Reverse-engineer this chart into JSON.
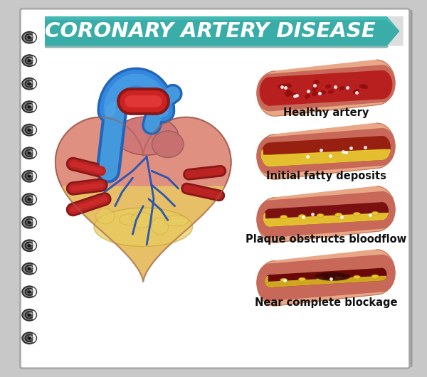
{
  "title": "CORONARY ARTERY DISEASE",
  "title_bg_color": "#3aada8",
  "title_shadow_color": "#2a8a85",
  "title_text_color": "#ffffff",
  "bg_color": "#c8c8c8",
  "page_bg": "#ffffff",
  "page_border": "#bbbbbb",
  "spiral_color": "#333333",
  "artery_labels": [
    "Healthy artery",
    "Initial fatty deposits",
    "Plaque obstructs bloodflow",
    "Near complete blockage"
  ],
  "artery_outer_color": "#e8a08a",
  "artery_wall_color": "#d4786a",
  "label_fontsize": 10.5,
  "figsize": [
    6.0,
    5.3
  ],
  "dpi": 100
}
